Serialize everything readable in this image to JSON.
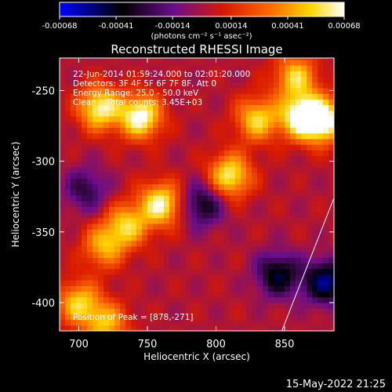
{
  "chart_data": {
    "type": "heatmap",
    "title": "Reconstructed RHESSI Image",
    "xlabel": "Heliocentric X (arcsec)",
    "ylabel": "Heliocentric Y (arcsec)",
    "xlim": [
      686,
      886
    ],
    "ylim": [
      -420,
      -227
    ],
    "x_ticks": [
      "700",
      "750",
      "800",
      "850"
    ],
    "x_tick_values": [
      700,
      750,
      800,
      850
    ],
    "y_ticks": [
      "-250",
      "-300",
      "-350",
      "-400"
    ],
    "y_tick_values": [
      -250,
      -300,
      -350,
      -400
    ],
    "colorbar": {
      "ticks": [
        "-0.00068",
        "-0.00041",
        "-0.00014",
        "0.00014",
        "0.00041",
        "0.00068"
      ],
      "tick_values": [
        -0.00068,
        -0.00041,
        -0.00014,
        0.00014,
        0.00041,
        0.00068
      ],
      "range": [
        -0.00068,
        0.00068
      ],
      "unit_label": "(photons cm⁻² s⁻¹ asec⁻²)",
      "colormap": [
        "#0000ff",
        "#000000",
        "#6a0e8a",
        "#d81a00",
        "#ff6a00",
        "#ffd400",
        "#ffffff"
      ]
    },
    "annotations": {
      "time_range": "22-Jun-2014 01:59:24.000 to 02:01:20.000",
      "detectors": "Detectors: 3F 4F 5F 6F 7F 8F, Att 0",
      "energy": "Energy Range: 25.0 - 50.0 keV",
      "clean": "Clean    Total counts: 3.45E+03",
      "peak": "Position of Peak = [878,-271]"
    },
    "bright_regions": [
      {
        "x": 715,
        "y": -262,
        "value": 0.00062
      },
      {
        "x": 745,
        "y": -268,
        "value": 0.00068
      },
      {
        "x": 760,
        "y": -330,
        "value": 0.00062
      },
      {
        "x": 735,
        "y": -345,
        "value": 0.00048
      },
      {
        "x": 718,
        "y": -360,
        "value": 0.00042
      },
      {
        "x": 810,
        "y": -310,
        "value": 0.0006
      },
      {
        "x": 830,
        "y": -270,
        "value": 0.00052
      },
      {
        "x": 862,
        "y": -268,
        "value": 0.00066
      },
      {
        "x": 878,
        "y": -271,
        "value": 0.00068
      },
      {
        "x": 858,
        "y": -240,
        "value": 0.0005
      },
      {
        "x": 700,
        "y": -400,
        "value": 0.0005
      },
      {
        "x": 720,
        "y": -415,
        "value": 0.00045
      }
    ],
    "dim_regions": [
      {
        "x": 790,
        "y": -330,
        "value": -0.0004
      },
      {
        "x": 880,
        "y": -385,
        "value": -0.00055
      },
      {
        "x": 845,
        "y": -380,
        "value": -0.00045
      },
      {
        "x": 705,
        "y": -320,
        "value": -0.0003
      }
    ],
    "limb_line": [
      [
        848,
        -420
      ],
      [
        886,
        -326
      ]
    ]
  },
  "footer": {
    "date_stamp": "15-May-2022 21:25"
  }
}
